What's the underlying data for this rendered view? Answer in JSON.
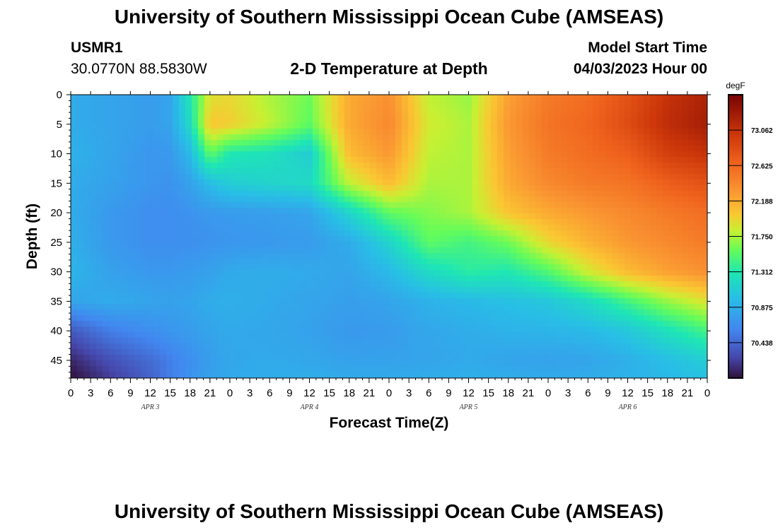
{
  "header": {
    "title": "University of Southern Mississippi Ocean Cube (AMSEAS)",
    "station": "USMR1",
    "coords": "30.0770N  88.5830W",
    "subtitle": "2-D Temperature at Depth",
    "start_label": "Model Start Time",
    "start_value": "04/03/2023 Hour 00"
  },
  "footer": {
    "title": "University of Southern Mississippi Ocean Cube (AMSEAS)"
  },
  "chart_data": {
    "type": "heatmap",
    "title": "2-D Temperature at Depth",
    "xlabel": "Forecast Time(Z)",
    "ylabel": "Depth (ft)",
    "x_hours_range": [
      0,
      96
    ],
    "ylim": [
      0,
      48
    ],
    "x_tick_labels": [
      "0",
      "3",
      "6",
      "9",
      "12",
      "15",
      "18",
      "21",
      "0",
      "3",
      "6",
      "9",
      "12",
      "15",
      "18",
      "21",
      "0",
      "3",
      "6",
      "9",
      "12",
      "15",
      "18",
      "21",
      "0",
      "3",
      "6",
      "9",
      "12",
      "15",
      "18",
      "21",
      "0"
    ],
    "y_ticks": [
      0,
      5,
      10,
      15,
      20,
      25,
      30,
      35,
      40,
      45
    ],
    "day_labels": [
      "APR 3",
      "APR 4",
      "APR 5",
      "APR 6"
    ],
    "colorbar": {
      "unit": "degF",
      "min": 70.0,
      "max": 73.5,
      "ticks": [
        "73.062",
        "72.625",
        "72.188",
        "71.750",
        "71.312",
        "70.875",
        "70.438"
      ]
    },
    "z_depths_ft": [
      0,
      5,
      10,
      15,
      20,
      25,
      30,
      35,
      40,
      45,
      48
    ],
    "z_times_h": [
      0,
      6,
      12,
      15,
      18,
      21,
      24,
      30,
      36,
      42,
      48,
      54,
      60,
      66,
      72,
      78,
      84,
      90,
      96
    ],
    "z_values_degF": [
      [
        70.85,
        70.8,
        70.75,
        70.8,
        71.3,
        71.9,
        71.95,
        71.75,
        71.6,
        72.2,
        72.35,
        71.8,
        71.7,
        72.25,
        72.5,
        72.6,
        72.8,
        73.05,
        73.2
      ],
      [
        70.85,
        70.8,
        70.75,
        70.8,
        71.2,
        72.05,
        72.0,
        71.8,
        71.55,
        72.2,
        72.4,
        71.85,
        71.75,
        72.3,
        72.55,
        72.65,
        72.85,
        73.1,
        73.25
      ],
      [
        70.9,
        70.8,
        70.7,
        70.72,
        70.95,
        71.55,
        71.3,
        71.25,
        71.1,
        72.1,
        72.3,
        71.8,
        71.75,
        72.25,
        72.5,
        72.6,
        72.7,
        72.95,
        73.05
      ],
      [
        70.85,
        70.78,
        70.7,
        70.68,
        70.78,
        70.98,
        71.1,
        71.15,
        71.2,
        71.8,
        72.1,
        71.75,
        71.75,
        72.2,
        72.4,
        72.5,
        72.55,
        72.7,
        72.8
      ],
      [
        70.85,
        70.72,
        70.65,
        70.65,
        70.68,
        70.72,
        70.74,
        70.76,
        70.8,
        71.15,
        71.55,
        71.65,
        71.75,
        72.05,
        72.2,
        72.3,
        72.4,
        72.5,
        72.6
      ],
      [
        70.88,
        70.72,
        70.65,
        70.65,
        70.66,
        70.68,
        70.7,
        70.72,
        70.74,
        70.85,
        71.15,
        71.55,
        71.45,
        71.6,
        71.95,
        72.15,
        72.3,
        72.4,
        72.5
      ],
      [
        70.92,
        70.78,
        70.72,
        70.72,
        70.74,
        70.78,
        70.84,
        70.86,
        70.84,
        70.8,
        70.95,
        71.2,
        71.35,
        71.3,
        71.5,
        71.85,
        72.1,
        72.25,
        72.35
      ],
      [
        70.8,
        70.85,
        70.8,
        70.78,
        70.8,
        70.86,
        70.88,
        70.84,
        70.8,
        70.76,
        70.8,
        70.9,
        70.95,
        71.0,
        71.05,
        71.2,
        71.45,
        71.7,
        71.9
      ],
      [
        70.35,
        70.55,
        70.65,
        70.7,
        70.75,
        70.8,
        70.84,
        70.82,
        70.78,
        70.72,
        70.74,
        70.82,
        70.86,
        70.9,
        70.92,
        70.95,
        71.05,
        71.25,
        71.45
      ],
      [
        70.1,
        70.3,
        70.45,
        70.55,
        70.65,
        70.75,
        70.82,
        70.84,
        70.82,
        70.78,
        70.78,
        70.8,
        70.84,
        70.8,
        70.78,
        70.8,
        70.88,
        70.98,
        71.1
      ],
      [
        70.0,
        70.2,
        70.4,
        70.55,
        70.68,
        70.78,
        70.84,
        70.86,
        70.86,
        70.84,
        70.84,
        70.86,
        70.88,
        70.86,
        70.84,
        70.86,
        70.9,
        70.95,
        71.0
      ]
    ]
  }
}
